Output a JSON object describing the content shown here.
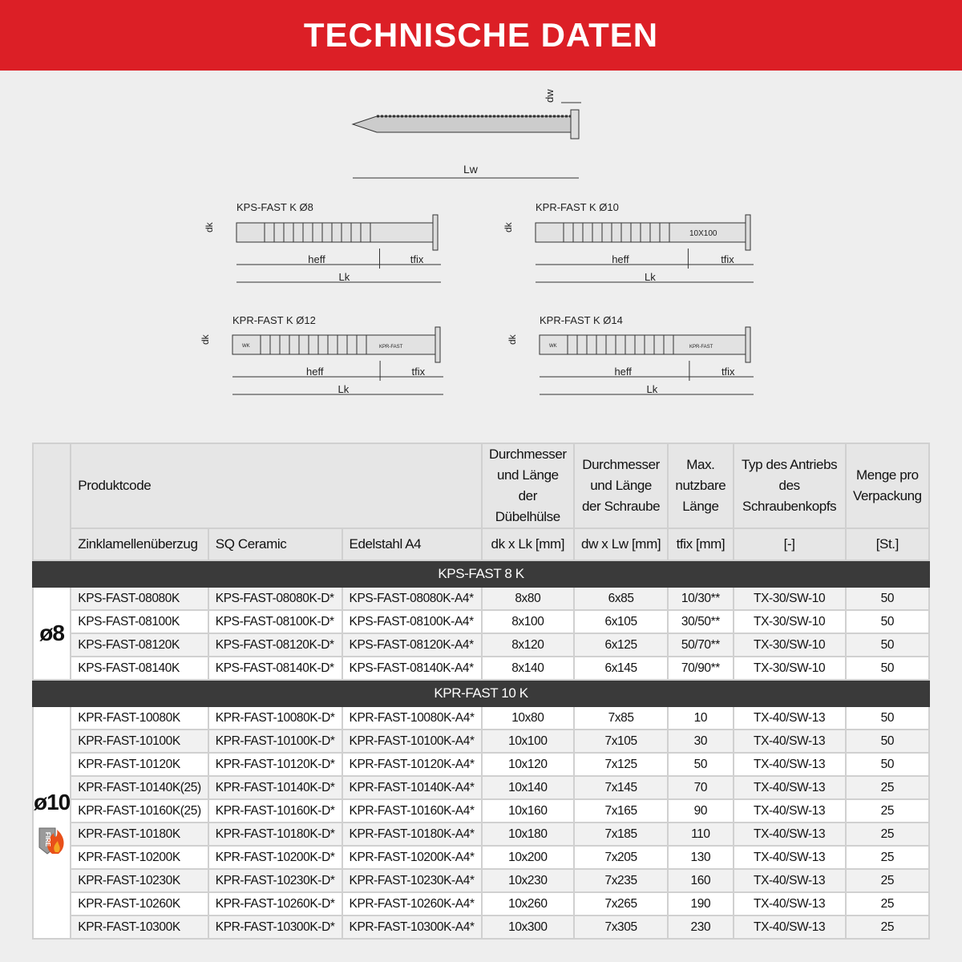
{
  "title": "TECHNISCHE DATEN",
  "drawings": {
    "screw": {
      "dw": "dw",
      "lw": "Lw"
    },
    "anchors": [
      {
        "name": "KPS-FAST K Ø8",
        "dk": "dk",
        "heff": "heff",
        "tfix": "tfix",
        "lk": "Lk"
      },
      {
        "name": "KPR-FAST K Ø10",
        "dk": "dk",
        "heff": "heff",
        "tfix": "tfix",
        "lk": "Lk",
        "marking": "10X100"
      },
      {
        "name": "KPR-FAST K Ø12",
        "dk": "dk",
        "heff": "heff",
        "tfix": "tfix",
        "lk": "Lk",
        "marking": "KPR-FAST",
        "wk": "WK"
      },
      {
        "name": "KPR-FAST K Ø14",
        "dk": "dk",
        "heff": "heff",
        "tfix": "tfix",
        "lk": "Lk",
        "marking": "KPR-FAST",
        "wk": "WK"
      }
    ]
  },
  "table": {
    "header": {
      "produktcode": "Produktcode",
      "col1": "Zinklamellenüberzug",
      "col2": "SQ Ceramic",
      "col3": "Edelstahl A4",
      "dubel": "Durchmesser und Länge der Dübelhülse",
      "dubel_unit": "dk x Lk [mm]",
      "schraube": "Durchmesser und Länge der Schraube",
      "schraube_unit": "dw x Lw [mm]",
      "laenge": "Max. nutzbare Länge",
      "laenge_unit": "tfix [mm]",
      "typ": "Typ des Antriebs des Schraubenkopfs",
      "typ_unit": "[-]",
      "menge": "Menge pro Verpackung",
      "menge_unit": "[St.]"
    },
    "sections": [
      {
        "title": "KPS-FAST 8 K",
        "diameter": "ø8",
        "rows": [
          [
            "KPS-FAST-08080K",
            "KPS-FAST-08080K-D*",
            "KPS-FAST-08080K-A4*",
            "8x80",
            "6x85",
            "10/30**",
            "TX-30/SW-10",
            "50"
          ],
          [
            "KPS-FAST-08100K",
            "KPS-FAST-08100K-D*",
            "KPS-FAST-08100K-A4*",
            "8x100",
            "6x105",
            "30/50**",
            "TX-30/SW-10",
            "50"
          ],
          [
            "KPS-FAST-08120K",
            "KPS-FAST-08120K-D*",
            "KPS-FAST-08120K-A4*",
            "8x120",
            "6x125",
            "50/70**",
            "TX-30/SW-10",
            "50"
          ],
          [
            "KPS-FAST-08140K",
            "KPS-FAST-08140K-D*",
            "KPS-FAST-08140K-A4*",
            "8x140",
            "6x145",
            "70/90**",
            "TX-30/SW-10",
            "50"
          ]
        ]
      },
      {
        "title": "KPR-FAST 10 K",
        "diameter": "ø10",
        "badge": "FIRE",
        "rows": [
          [
            "KPR-FAST-10080K",
            "KPR-FAST-10080K-D*",
            "KPR-FAST-10080K-A4*",
            "10x80",
            "7x85",
            "10",
            "TX-40/SW-13",
            "50"
          ],
          [
            "KPR-FAST-10100K",
            "KPR-FAST-10100K-D*",
            "KPR-FAST-10100K-A4*",
            "10x100",
            "7x105",
            "30",
            "TX-40/SW-13",
            "50"
          ],
          [
            "KPR-FAST-10120K",
            "KPR-FAST-10120K-D*",
            "KPR-FAST-10120K-A4*",
            "10x120",
            "7x125",
            "50",
            "TX-40/SW-13",
            "50"
          ],
          [
            "KPR-FAST-10140K(25)",
            "KPR-FAST-10140K-D*",
            "KPR-FAST-10140K-A4*",
            "10x140",
            "7x145",
            "70",
            "TX-40/SW-13",
            "25"
          ],
          [
            "KPR-FAST-10160K(25)",
            "KPR-FAST-10160K-D*",
            "KPR-FAST-10160K-A4*",
            "10x160",
            "7x165",
            "90",
            "TX-40/SW-13",
            "25"
          ],
          [
            "KPR-FAST-10180K",
            "KPR-FAST-10180K-D*",
            "KPR-FAST-10180K-A4*",
            "10x180",
            "7x185",
            "110",
            "TX-40/SW-13",
            "25"
          ],
          [
            "KPR-FAST-10200K",
            "KPR-FAST-10200K-D*",
            "KPR-FAST-10200K-A4*",
            "10x200",
            "7x205",
            "130",
            "TX-40/SW-13",
            "25"
          ],
          [
            "KPR-FAST-10230K",
            "KPR-FAST-10230K-D*",
            "KPR-FAST-10230K-A4*",
            "10x230",
            "7x235",
            "160",
            "TX-40/SW-13",
            "25"
          ],
          [
            "KPR-FAST-10260K",
            "KPR-FAST-10260K-D*",
            "KPR-FAST-10260K-A4*",
            "10x260",
            "7x265",
            "190",
            "TX-40/SW-13",
            "25"
          ],
          [
            "KPR-FAST-10300K",
            "KPR-FAST-10300K-D*",
            "KPR-FAST-10300K-A4*",
            "10x300",
            "7x305",
            "230",
            "TX-40/SW-13",
            "25"
          ]
        ]
      }
    ]
  }
}
